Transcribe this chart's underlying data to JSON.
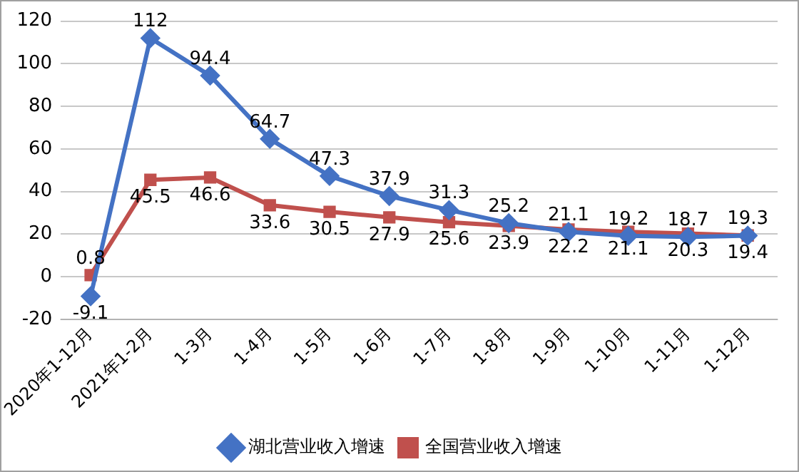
{
  "chart_data": {
    "type": "line",
    "categories": [
      "2020年1-12月",
      "2021年1-2月",
      "1-3月",
      "1-4月",
      "1-5月",
      "1-6月",
      "1-7月",
      "1-8月",
      "1-9月",
      "1-10月",
      "1-11月",
      "1-12月"
    ],
    "series": [
      {
        "name": "湖北营业收入增速",
        "color": "#4472c4",
        "marker": "diamond",
        "values": [
          -9.1,
          112,
          94.4,
          64.7,
          47.3,
          37.9,
          31.3,
          25.2,
          21.1,
          19.2,
          18.7,
          19.3
        ]
      },
      {
        "name": "全国营业收入增速",
        "color": "#c0504d",
        "marker": "square",
        "values": [
          0.8,
          45.5,
          46.6,
          33.6,
          30.5,
          27.9,
          25.6,
          23.9,
          22.2,
          21.1,
          20.3,
          19.4
        ]
      }
    ],
    "ylim": [
      -20,
      120
    ],
    "yticks": [
      -20,
      0,
      20,
      40,
      60,
      80,
      100,
      120
    ],
    "grid": "y",
    "legend": "bottom",
    "data_labels": true,
    "line_style": "solid"
  }
}
